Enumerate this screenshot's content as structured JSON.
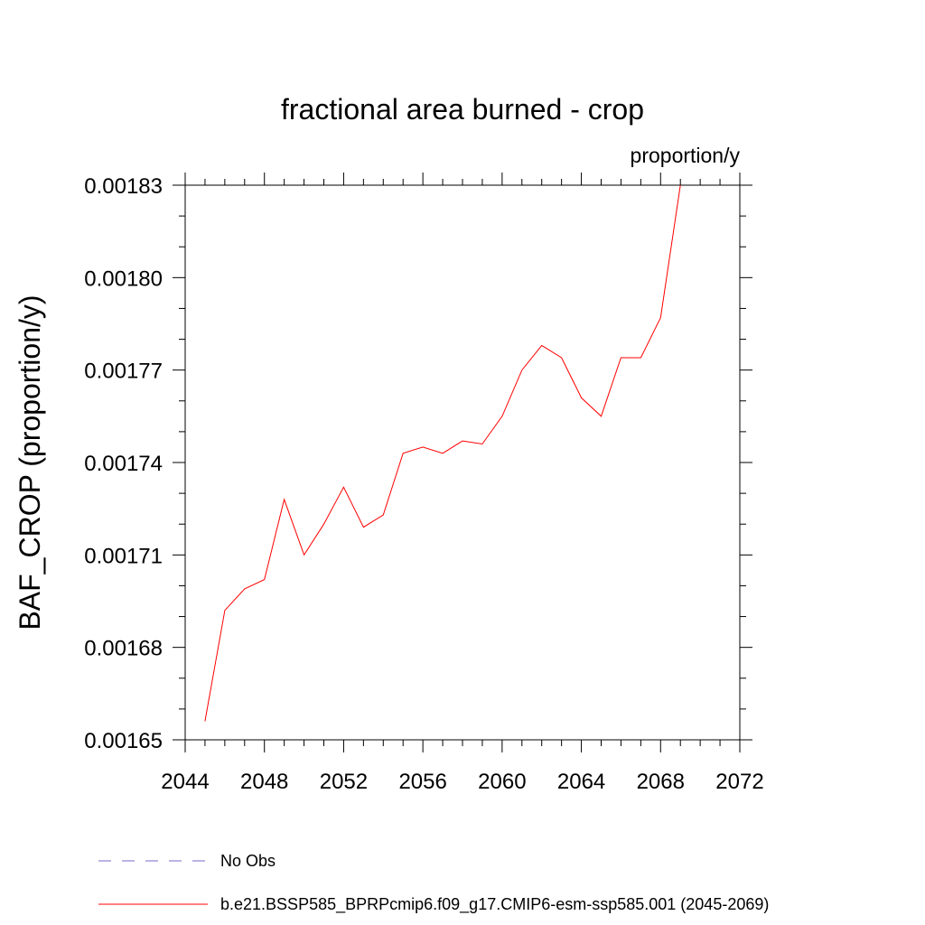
{
  "chart_data": {
    "type": "line",
    "title": "fractional area burned - crop",
    "units_label": "proportion/y",
    "ylabel": "BAF_CROP  (proportion/y)",
    "xlabel": "",
    "xlim": [
      2044,
      2072
    ],
    "ylim": [
      0.00165,
      0.00183
    ],
    "x_ticks": [
      "2044",
      "2048",
      "2052",
      "2056",
      "2060",
      "2064",
      "2068",
      "2072"
    ],
    "y_ticks": [
      "0.00165",
      "0.00168",
      "0.00171",
      "0.00174",
      "0.00177",
      "0.00180",
      "0.00183"
    ],
    "series": [
      {
        "name": "No Obs",
        "color": "#7b68c8",
        "style": "dashed",
        "x": [],
        "values": []
      },
      {
        "name": "b.e21.BSSP585_BPRPcmip6.f09_g17.CMIP6-esm-ssp585.001 (2045-2069)",
        "color": "#ff0000",
        "style": "solid",
        "x": [
          2045,
          2046,
          2047,
          2048,
          2049,
          2050,
          2051,
          2052,
          2053,
          2054,
          2055,
          2056,
          2057,
          2058,
          2059,
          2060,
          2061,
          2062,
          2063,
          2064,
          2065,
          2066,
          2067,
          2068,
          2069
        ],
        "values": [
          0.001656,
          0.001692,
          0.001699,
          0.001702,
          0.001728,
          0.00171,
          0.00172,
          0.001732,
          0.001719,
          0.001723,
          0.001743,
          0.001745,
          0.001743,
          0.001747,
          0.001746,
          0.001755,
          0.00177,
          0.001778,
          0.001774,
          0.001761,
          0.001755,
          0.001774,
          0.001774,
          0.001787,
          0.00183
        ]
      }
    ],
    "grid": false,
    "legend_position": "bottom"
  }
}
